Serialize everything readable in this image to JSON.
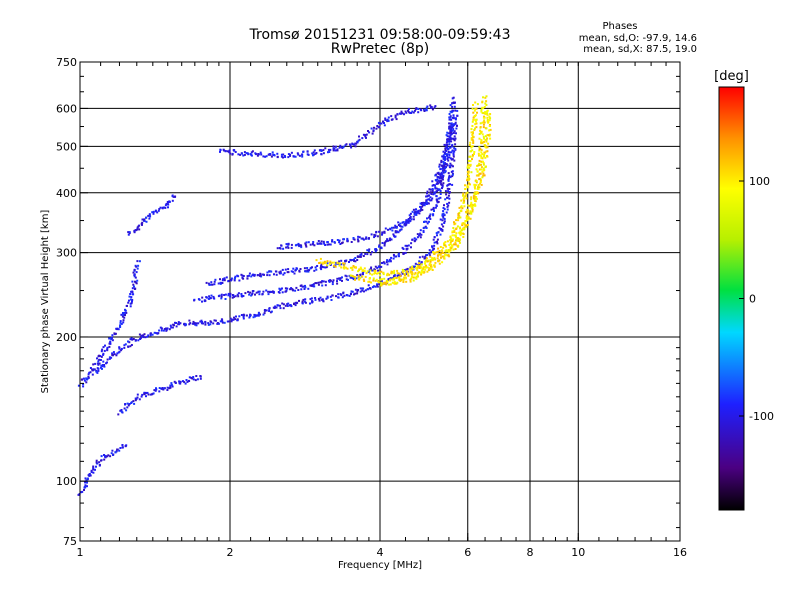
{
  "header": {
    "title": "Tromsø 20151231 09:58:00-09:59:43",
    "subtitle": "RwPretec (8p)"
  },
  "stats": {
    "heading": "Phases",
    "line_o": "mean, sd,O: -97.9, 14.6",
    "line_x": "mean, sd,X:  87.5, 19.0"
  },
  "chart_data": {
    "type": "scatter",
    "xlabel": "Frequency [MHz]",
    "ylabel": "Stationary phase Virtual Height [km]",
    "xscale": "log",
    "yscale": "log",
    "xlim": [
      1,
      16
    ],
    "ylim": [
      75,
      750
    ],
    "x_ticks": [
      "1",
      "2",
      "4",
      "6",
      "8",
      "10",
      "16"
    ],
    "x_tick_values": [
      1,
      2,
      4,
      6,
      8,
      10,
      16
    ],
    "y_ticks": [
      "75",
      "100",
      "200",
      "300",
      "400",
      "500",
      "600",
      "750"
    ],
    "y_tick_values": [
      75,
      100,
      200,
      300,
      400,
      500,
      600,
      750
    ],
    "grid": true,
    "colorbar": {
      "label": "[deg]",
      "ticks": [
        "100",
        "0",
        "-100"
      ],
      "tick_values": [
        100,
        0,
        -100
      ],
      "range": [
        -180,
        180
      ]
    },
    "traces": [
      {
        "name": "",
        "phase": -100,
        "points": [
          [
            1.0,
            95
          ],
          [
            1.05,
            105
          ],
          [
            1.1,
            112
          ],
          [
            1.2,
            118
          ],
          [
            1.25,
            120
          ]
        ]
      },
      {
        "name": "",
        "phase": -100,
        "points": [
          [
            1.0,
            160
          ],
          [
            1.1,
            175
          ],
          [
            1.2,
            190
          ],
          [
            1.3,
            200
          ],
          [
            1.4,
            205
          ],
          [
            1.5,
            210
          ],
          [
            1.6,
            215
          ],
          [
            1.8,
            215
          ],
          [
            2.0,
            218
          ],
          [
            2.3,
            225
          ],
          [
            2.6,
            235
          ],
          [
            3.0,
            240
          ],
          [
            3.5,
            248
          ],
          [
            4.0,
            260
          ],
          [
            4.5,
            275
          ],
          [
            5.0,
            300
          ],
          [
            5.3,
            340
          ],
          [
            5.5,
            420
          ],
          [
            5.6,
            520
          ],
          [
            5.65,
            600
          ]
        ]
      },
      {
        "name": "",
        "phase": -100,
        "points": [
          [
            1.7,
            240
          ],
          [
            2.0,
            245
          ],
          [
            2.4,
            250
          ],
          [
            2.8,
            255
          ],
          [
            3.2,
            262
          ],
          [
            3.6,
            270
          ],
          [
            4.0,
            282
          ],
          [
            4.4,
            300
          ],
          [
            4.8,
            330
          ],
          [
            5.1,
            370
          ],
          [
            5.3,
            420
          ],
          [
            5.45,
            500
          ],
          [
            5.55,
            570
          ]
        ]
      },
      {
        "name": "",
        "phase": -100,
        "points": [
          [
            1.8,
            260
          ],
          [
            2.0,
            265
          ],
          [
            2.2,
            270
          ],
          [
            2.6,
            275
          ],
          [
            3.0,
            280
          ],
          [
            3.5,
            290
          ],
          [
            4.0,
            310
          ],
          [
            4.5,
            345
          ],
          [
            5.0,
            400
          ],
          [
            5.3,
            460
          ],
          [
            5.5,
            540
          ],
          [
            5.6,
            640
          ]
        ]
      },
      {
        "name": "",
        "phase": -100,
        "points": [
          [
            2.5,
            310
          ],
          [
            3.0,
            315
          ],
          [
            3.5,
            320
          ],
          [
            4.0,
            330
          ],
          [
            4.5,
            350
          ],
          [
            5.0,
            385
          ],
          [
            5.3,
            430
          ],
          [
            5.5,
            500
          ]
        ]
      },
      {
        "name": "",
        "phase": 100,
        "points": [
          [
            3.0,
            290
          ],
          [
            3.5,
            280
          ],
          [
            4.0,
            272
          ],
          [
            4.5,
            275
          ],
          [
            5.0,
            290
          ],
          [
            5.5,
            320
          ],
          [
            5.8,
            370
          ],
          [
            6.0,
            430
          ],
          [
            6.1,
            500
          ],
          [
            6.15,
            560
          ],
          [
            6.2,
            620
          ]
        ]
      },
      {
        "name": "",
        "phase": 100,
        "points": [
          [
            3.5,
            268
          ],
          [
            4.0,
            262
          ],
          [
            4.5,
            268
          ],
          [
            5.0,
            285
          ],
          [
            5.5,
            310
          ],
          [
            5.9,
            350
          ],
          [
            6.2,
            410
          ],
          [
            6.35,
            480
          ],
          [
            6.4,
            560
          ],
          [
            6.45,
            640
          ]
        ]
      },
      {
        "name": "",
        "phase": 100,
        "points": [
          [
            4.0,
            260
          ],
          [
            4.6,
            265
          ],
          [
            5.2,
            285
          ],
          [
            5.7,
            315
          ],
          [
            6.1,
            370
          ],
          [
            6.4,
            440
          ],
          [
            6.55,
            520
          ],
          [
            6.6,
            600
          ]
        ]
      },
      {
        "name": "",
        "phase": -100,
        "points": [
          [
            1.9,
            490
          ],
          [
            2.2,
            485
          ],
          [
            2.6,
            480
          ],
          [
            3.0,
            488
          ],
          [
            3.5,
            505
          ],
          [
            4.0,
            560
          ],
          [
            4.4,
            590
          ],
          [
            4.8,
            600
          ],
          [
            5.2,
            610
          ]
        ]
      },
      {
        "name": "",
        "phase": -100,
        "points": [
          [
            1.25,
            330
          ],
          [
            1.3,
            340
          ],
          [
            1.35,
            355
          ],
          [
            1.4,
            365
          ],
          [
            1.45,
            370
          ],
          [
            1.5,
            380
          ],
          [
            1.55,
            400
          ]
        ]
      },
      {
        "name": "",
        "phase": -100,
        "points": [
          [
            1.2,
            140
          ],
          [
            1.3,
            150
          ],
          [
            1.4,
            155
          ],
          [
            1.5,
            158
          ],
          [
            1.6,
            162
          ],
          [
            1.7,
            165
          ],
          [
            1.75,
            165
          ]
        ]
      },
      {
        "name": "",
        "phase": -100,
        "points": [
          [
            1.05,
            170
          ],
          [
            1.1,
            185
          ],
          [
            1.15,
            200
          ],
          [
            1.2,
            215
          ],
          [
            1.25,
            235
          ],
          [
            1.28,
            260
          ],
          [
            1.3,
            290
          ]
        ]
      }
    ]
  }
}
